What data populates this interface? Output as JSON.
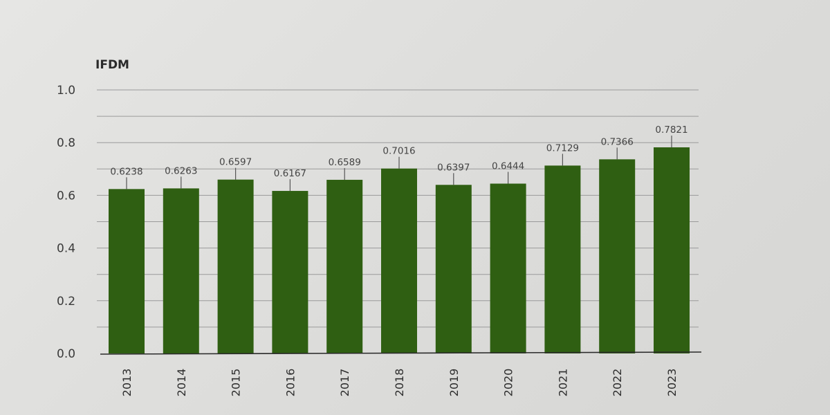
{
  "chart_data": {
    "type": "bar",
    "title": "",
    "xlabel": "",
    "ylabel": "IFDM",
    "ylim": [
      0.0,
      1.0
    ],
    "yticks": [
      "0.0",
      "0.2",
      "0.4",
      "0.6",
      "0.8",
      "1.0"
    ],
    "grid": true,
    "grid_step": 0.1,
    "legend": null,
    "categories": [
      "2013",
      "2014",
      "2015",
      "2016",
      "2017",
      "2018",
      "2019",
      "2020",
      "2021",
      "2022",
      "2023"
    ],
    "values": [
      0.6238,
      0.6263,
      0.6597,
      0.6167,
      0.6589,
      0.7016,
      0.6397,
      0.6444,
      0.7129,
      0.7366,
      0.7821
    ],
    "value_labels": [
      "0.6238",
      "0.6263",
      "0.6597",
      "0.6167",
      "0.6589",
      "0.7016",
      "0.6397",
      "0.6444",
      "0.7129",
      "0.7366",
      "0.7821"
    ],
    "bar_color": "#2f5f12"
  }
}
